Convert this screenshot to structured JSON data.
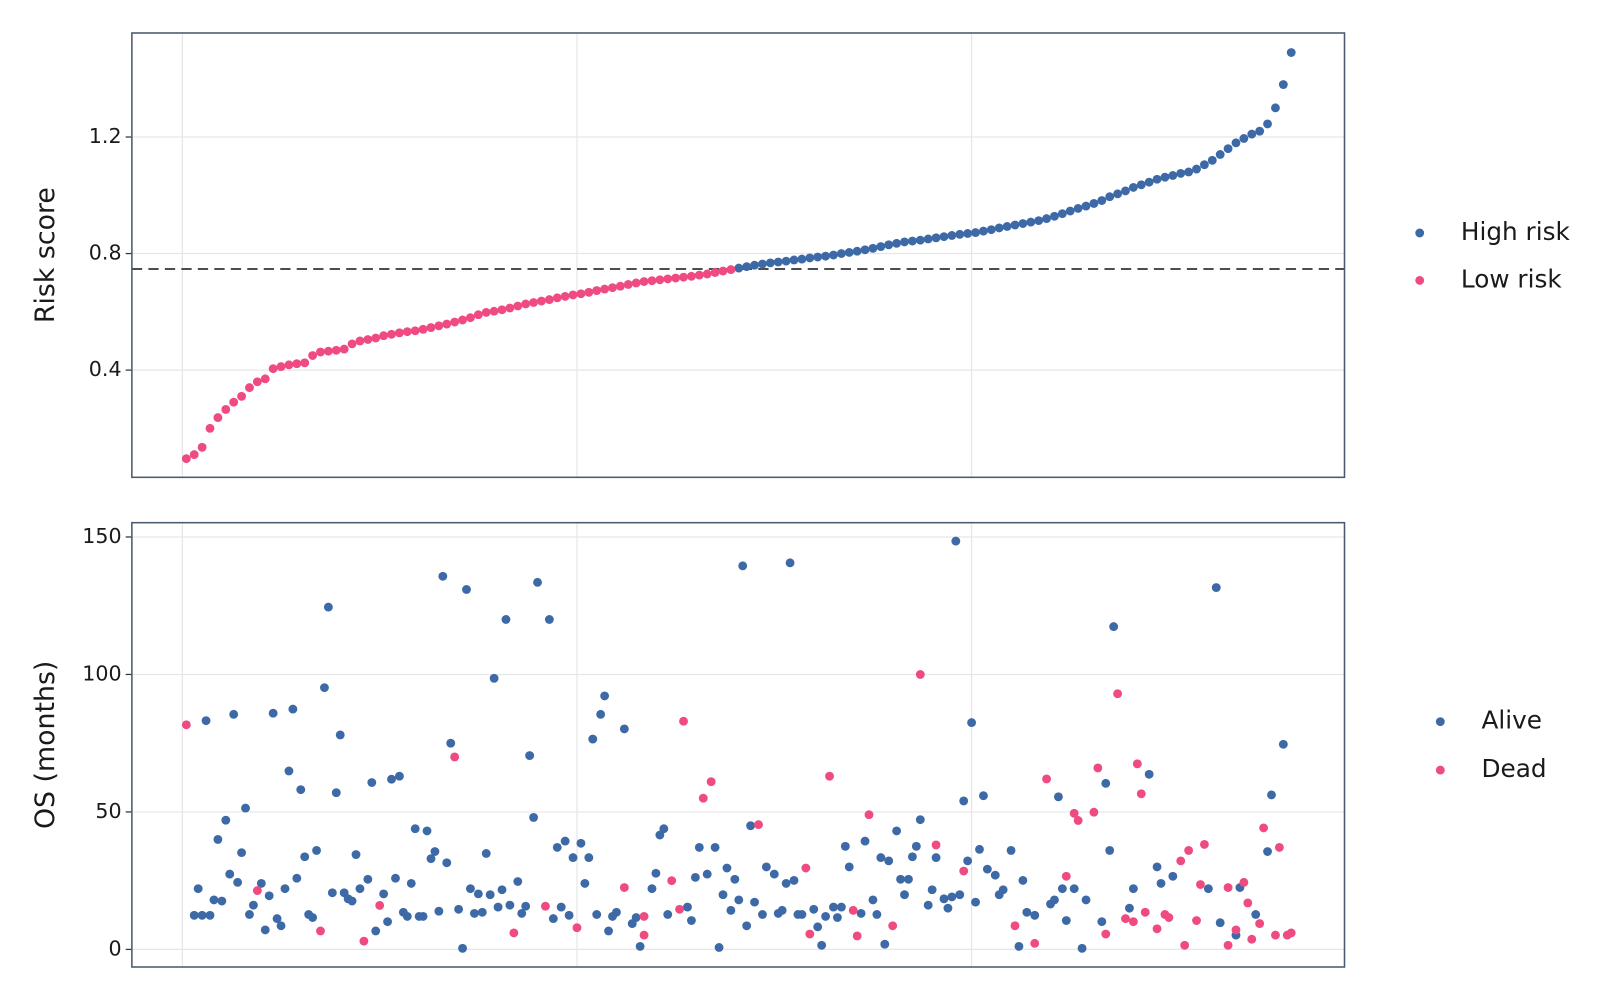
{
  "chart_data": [
    {
      "type": "scatter",
      "ylabel": "Risk score",
      "xlim": [
        -12.8,
        294.5
      ],
      "ylim": [
        0.032,
        1.557
      ],
      "yticks": [
        0.4,
        0.8,
        1.2
      ],
      "xgrid": [
        0,
        100,
        200
      ],
      "grid": true,
      "hline": 0.747,
      "legend": "right",
      "series": [
        {
          "name": "High risk",
          "color": "#3d6aa7",
          "x": [
            141,
            143,
            145,
            147,
            149,
            151,
            153,
            155,
            157,
            159,
            161,
            163,
            165,
            167,
            169,
            171,
            173,
            175,
            177,
            179,
            181,
            183,
            185,
            187,
            189,
            191,
            193,
            195,
            197,
            199,
            201,
            203,
            205,
            207,
            209,
            211,
            213,
            215,
            217,
            219,
            221,
            223,
            225,
            227,
            229,
            231,
            233,
            235,
            237,
            239,
            241,
            243,
            245,
            247,
            249,
            251,
            253,
            255,
            257,
            259,
            261,
            263,
            265,
            267,
            269,
            271,
            273,
            275,
            277,
            279,
            281
          ],
          "values": [
            0.75,
            0.755,
            0.76,
            0.764,
            0.768,
            0.771,
            0.774,
            0.778,
            0.781,
            0.785,
            0.788,
            0.791,
            0.795,
            0.8,
            0.804,
            0.808,
            0.813,
            0.818,
            0.824,
            0.83,
            0.835,
            0.84,
            0.843,
            0.846,
            0.85,
            0.854,
            0.858,
            0.862,
            0.866,
            0.869,
            0.872,
            0.877,
            0.882,
            0.888,
            0.893,
            0.898,
            0.903,
            0.908,
            0.913,
            0.92,
            0.928,
            0.937,
            0.946,
            0.955,
            0.963,
            0.972,
            0.982,
            0.995,
            1.005,
            1.015,
            1.027,
            1.036,
            1.045,
            1.055,
            1.062,
            1.068,
            1.075,
            1.08,
            1.09,
            1.105,
            1.12,
            1.14,
            1.16,
            1.18,
            1.195,
            1.21,
            1.22,
            1.245,
            1.3,
            1.38,
            1.49
          ]
        },
        {
          "name": "Low risk",
          "color": "#f04b80",
          "x": [
            1,
            3,
            5,
            7,
            9,
            11,
            13,
            15,
            17,
            19,
            21,
            23,
            25,
            27,
            29,
            31,
            33,
            35,
            37,
            39,
            41,
            43,
            45,
            47,
            49,
            51,
            53,
            55,
            57,
            59,
            61,
            63,
            65,
            67,
            69,
            71,
            73,
            75,
            77,
            79,
            81,
            83,
            85,
            87,
            89,
            91,
            93,
            95,
            97,
            99,
            101,
            103,
            105,
            107,
            109,
            111,
            113,
            115,
            117,
            119,
            121,
            123,
            125,
            127,
            129,
            131,
            133,
            135,
            137,
            139
          ],
          "values": [
            0.096,
            0.11,
            0.135,
            0.2,
            0.237,
            0.265,
            0.29,
            0.31,
            0.34,
            0.36,
            0.37,
            0.405,
            0.412,
            0.418,
            0.422,
            0.425,
            0.45,
            0.462,
            0.465,
            0.468,
            0.472,
            0.49,
            0.5,
            0.505,
            0.51,
            0.518,
            0.523,
            0.528,
            0.532,
            0.535,
            0.54,
            0.546,
            0.552,
            0.558,
            0.565,
            0.572,
            0.58,
            0.59,
            0.598,
            0.602,
            0.607,
            0.613,
            0.62,
            0.627,
            0.632,
            0.637,
            0.642,
            0.648,
            0.653,
            0.658,
            0.662,
            0.667,
            0.673,
            0.678,
            0.683,
            0.688,
            0.694,
            0.699,
            0.704,
            0.707,
            0.71,
            0.713,
            0.716,
            0.719,
            0.722,
            0.726,
            0.73,
            0.735,
            0.74,
            0.745
          ]
        }
      ]
    },
    {
      "type": "scatter",
      "ylabel": "OS (months)",
      "xlim": [
        -12.8,
        294.5
      ],
      "ylim": [
        -6.4,
        155.2
      ],
      "yticks": [
        0,
        50,
        100,
        150
      ],
      "xgrid": [
        0,
        100,
        200
      ],
      "grid": true,
      "legend": "right",
      "series": [
        {
          "name": "Alive",
          "color": "#3d6aa7",
          "x": [
            3,
            4,
            5,
            6,
            7,
            8,
            9,
            10,
            11,
            12,
            13,
            14,
            15,
            16,
            17,
            18,
            20,
            21,
            22,
            23,
            24,
            25,
            26,
            27,
            28,
            29,
            30,
            31,
            32,
            33,
            34,
            36,
            37,
            38,
            40,
            39,
            41,
            42,
            43,
            44,
            45,
            47,
            48,
            49,
            51,
            52,
            53,
            54,
            55,
            56,
            57,
            58,
            59,
            60,
            61,
            62,
            63,
            64,
            65,
            66,
            67,
            68,
            70,
            71,
            72,
            73,
            74,
            75,
            76,
            77,
            78,
            79,
            80,
            81,
            82,
            83,
            85,
            86,
            87,
            88,
            89,
            90,
            93,
            94,
            95,
            96,
            97,
            98,
            99,
            101,
            102,
            103,
            104,
            105,
            106,
            107,
            108,
            109,
            110,
            112,
            114,
            115,
            116,
            119,
            120,
            121,
            122,
            123,
            128,
            129,
            130,
            131,
            133,
            135,
            136,
            137,
            138,
            139,
            140,
            141,
            142,
            143,
            144,
            145,
            147,
            148,
            150,
            151,
            152,
            153,
            154,
            155,
            156,
            157,
            160,
            161,
            162,
            163,
            165,
            166,
            167,
            168,
            169,
            172,
            173,
            175,
            176,
            177,
            178,
            179,
            181,
            182,
            183,
            184,
            185,
            186,
            187,
            189,
            190,
            191,
            193,
            194,
            195,
            196,
            197,
            198,
            199,
            200,
            201,
            202,
            203,
            204,
            206,
            207,
            208,
            210,
            212,
            213,
            214,
            216,
            220,
            221,
            222,
            223,
            224,
            226,
            228,
            229,
            233,
            234,
            235,
            236,
            240,
            241,
            245,
            247,
            248,
            251,
            260,
            262,
            263,
            267,
            268,
            272,
            275,
            276,
            279
          ],
          "values": [
            12.4,
            22.1,
            12.4,
            83.2,
            12.4,
            18,
            40,
            17.6,
            47,
            27.4,
            85.5,
            24.4,
            35.2,
            51.4,
            12.7,
            16.1,
            24,
            7.1,
            19.5,
            85.9,
            11.2,
            8.6,
            22.1,
            64.9,
            87.4,
            25.9,
            58.1,
            33.7,
            12.7,
            11.6,
            36,
            95.2,
            124.5,
            20.6,
            78,
            57,
            20.6,
            18.4,
            17.6,
            34.5,
            22.1,
            25.5,
            60.7,
            6.7,
            20.2,
            10.1,
            61.9,
            25.9,
            63,
            13.5,
            12,
            24,
            43.9,
            12,
            12,
            43.1,
            33,
            35.6,
            13.9,
            135.7,
            31.5,
            75,
            14.6,
            0.4,
            130.9,
            22.1,
            13.1,
            20.2,
            13.5,
            34.9,
            19.9,
            98.6,
            15.4,
            21.7,
            120,
            16.1,
            24.7,
            13.1,
            15.7,
            70.5,
            48,
            133.5,
            120,
            11.2,
            37.1,
            15.4,
            39.4,
            12.4,
            33.4,
            38.6,
            24,
            33.4,
            76.5,
            12.7,
            85.5,
            92.2,
            6.7,
            12,
            13.5,
            80.2,
            9.4,
            11.6,
            1.1,
            22.1,
            27.7,
            41.6,
            43.9,
            12.7,
            15.4,
            10.5,
            26.2,
            37.1,
            27.4,
            37.1,
            0.7,
            19.9,
            29.6,
            14.2,
            25.5,
            18,
            139.5,
            8.6,
            45,
            17.2,
            12.7,
            30,
            27.4,
            13.1,
            14.2,
            24,
            140.6,
            25.1,
            12.7,
            12.7,
            14.6,
            8.2,
            1.5,
            12,
            15.4,
            11.6,
            15.4,
            37.5,
            30,
            13.1,
            39.4,
            18,
            12.7,
            33.4,
            1.9,
            32.2,
            43.1,
            25.5,
            19.9,
            25.5,
            33.7,
            37.5,
            47.2,
            16.1,
            21.7,
            33.4,
            18.4,
            15,
            19.1,
            148.5,
            19.9,
            54,
            32.2,
            82.5,
            17.2,
            36.4,
            55.9,
            29.2,
            27,
            19.9,
            21.7,
            36,
            1.1,
            25.1,
            13.5,
            12.4,
            16.5,
            18,
            55.5,
            22.1,
            10.5,
            22.1,
            0.4,
            18,
            10.1,
            60.4,
            36,
            117.4,
            15,
            22.1,
            63.7,
            30,
            24,
            26.6,
            22.1,
            131.6,
            9.7,
            5.2,
            22.5,
            12.7,
            35.6,
            56.2,
            74.6
          ]
        },
        {
          "name": "Dead",
          "color": "#f04b80",
          "x": [
            1,
            19,
            35,
            46,
            50,
            69,
            84,
            92,
            100,
            112,
            117,
            117,
            124,
            126,
            127,
            132,
            134,
            146,
            158,
            159,
            164,
            170,
            171,
            174,
            180,
            187,
            191,
            198,
            211,
            216,
            219,
            224,
            226,
            227,
            231,
            232,
            234,
            237,
            239,
            241,
            242,
            243,
            244,
            247,
            249,
            250,
            253,
            254,
            255,
            257,
            259,
            258,
            265,
            265,
            267,
            269,
            270,
            271,
            273,
            274,
            278,
            277,
            280,
            281
          ],
          "values": [
            81.7,
            21.4,
            6.7,
            3,
            16,
            70,
            6,
            15.7,
            7.9,
            22.5,
            5.2,
            12,
            25,
            14.6,
            83,
            55,
            61,
            45.4,
            29.6,
            5.6,
            63,
            14.2,
            4.9,
            49,
            8.6,
            100,
            38,
            28.5,
            8.6,
            2.2,
            62,
            26.6,
            49.5,
            46.9,
            49.9,
            66,
            5.6,
            93,
            11.2,
            10.1,
            67.5,
            56.6,
            13.5,
            7.5,
            12.7,
            11.6,
            32.2,
            1.5,
            36,
            10.5,
            38.2,
            23.6,
            22.5,
            1.5,
            7.1,
            24.4,
            16.9,
            3.7,
            9.4,
            44.2,
            37.1,
            5.2,
            5.2,
            6
          ]
        }
      ]
    }
  ]
}
